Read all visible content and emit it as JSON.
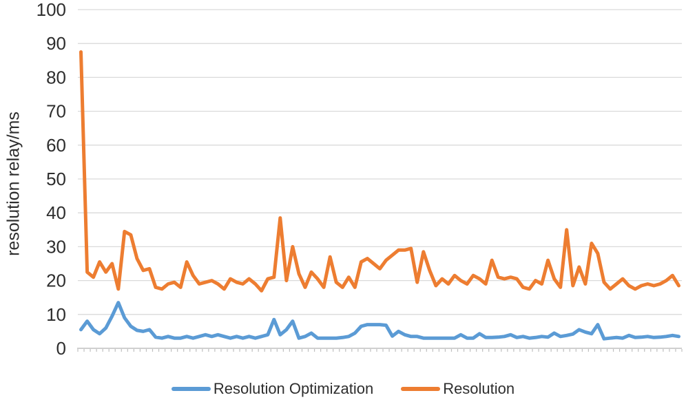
{
  "chart_data": {
    "type": "line",
    "title": "",
    "xlabel": "",
    "ylabel": "resolution relay/ms",
    "ylim": [
      0,
      100
    ],
    "yticks": [
      0,
      10,
      20,
      30,
      40,
      50,
      60,
      70,
      80,
      90,
      100
    ],
    "x_tick_labels": "none (97 unlabeled categories with tick marks)",
    "grid": "horizontal gridlines on",
    "legend_position": "bottom center",
    "n_points": 97,
    "series": [
      {
        "name": "Resolution Optimization",
        "color": "#5B9BD5",
        "values": [
          5.5,
          8,
          5.5,
          4.3,
          6,
          9.5,
          13.5,
          9,
          6.5,
          5.3,
          5,
          5.5,
          3.3,
          3,
          3.5,
          3,
          3,
          3.5,
          3,
          3.5,
          4,
          3.5,
          4,
          3.5,
          3,
          3.5,
          3,
          3.5,
          3,
          3.5,
          4,
          8.5,
          4,
          5.5,
          8,
          3,
          3.5,
          4.5,
          3,
          3,
          3,
          3,
          3.2,
          3.5,
          4.5,
          6.5,
          7,
          7,
          7,
          6.8,
          3.6,
          5,
          4,
          3.5,
          3.5,
          3,
          3,
          3,
          3,
          3,
          3,
          4,
          3,
          3,
          4.3,
          3.2,
          3.2,
          3.3,
          3.5,
          4,
          3.2,
          3.5,
          3,
          3.2,
          3.5,
          3.3,
          4.5,
          3.5,
          3.8,
          4.2,
          5.5,
          4.8,
          4.3,
          7,
          2.8,
          3,
          3.2,
          3,
          3.8,
          3.2,
          3.3,
          3.5,
          3.2,
          3.3,
          3.5,
          3.8,
          3.5
        ]
      },
      {
        "name": "Resolution",
        "color": "#ED7D31",
        "values": [
          87.5,
          22.5,
          21,
          25.5,
          22.5,
          25,
          17.5,
          34.5,
          33.5,
          26.5,
          23,
          23.5,
          18,
          17.5,
          19,
          19.5,
          18,
          25.5,
          21.5,
          19,
          19.5,
          20,
          19,
          17.5,
          20.5,
          19.5,
          19,
          20.5,
          19,
          17,
          20.5,
          21,
          38.5,
          20,
          30,
          22,
          18,
          22.5,
          20.5,
          18,
          27,
          19.5,
          18,
          21,
          18,
          25.5,
          26.5,
          25,
          23.5,
          26,
          27.5,
          29,
          29,
          29.5,
          19.5,
          28.5,
          23,
          18.5,
          20.5,
          19,
          21.5,
          20,
          19,
          21.5,
          20.5,
          19,
          26,
          21,
          20.5,
          21,
          20.5,
          18,
          17.5,
          20,
          19,
          26,
          20.5,
          18,
          35,
          18.5,
          24,
          19,
          31,
          28,
          19.5,
          17.5,
          19,
          20.5,
          18.5,
          17.5,
          18.5,
          19,
          18.5,
          19,
          20,
          21.5,
          18.5
        ]
      }
    ]
  },
  "colors": {
    "background": "#FFFFFF",
    "gridline": "#D9D9D9",
    "axis_line": "#BFBFBF",
    "tick_mark": "#BFBFBF",
    "text": "#2E2E2E"
  }
}
